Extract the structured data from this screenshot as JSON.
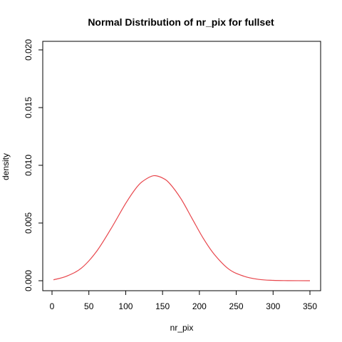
{
  "chart_data": {
    "type": "line",
    "title": "Normal Distribution of nr_pix for fullset",
    "xlabel": "nr_pix",
    "ylabel": "density",
    "xlim": [
      0,
      350
    ],
    "ylim": [
      0,
      0.02
    ],
    "x_ticks": [
      0,
      50,
      100,
      150,
      200,
      250,
      300,
      350
    ],
    "x_tick_labels": [
      "0",
      "50",
      "100",
      "150",
      "200",
      "250",
      "300",
      "350"
    ],
    "y_ticks": [
      0,
      0.005,
      0.01,
      0.015,
      0.02
    ],
    "y_tick_labels": [
      "0.000",
      "0.005",
      "0.010",
      "0.015",
      "0.020"
    ],
    "grid": false,
    "series": [
      {
        "color": "#e8464c",
        "x": [
          2,
          20,
          40,
          60,
          80,
          100,
          115,
          125,
          138,
          150,
          160,
          175,
          190,
          205,
          220,
          240,
          260,
          280,
          300,
          320,
          350
        ],
        "y": [
          8e-05,
          0.0004,
          0.0011,
          0.0025,
          0.0045,
          0.0067,
          0.0081,
          0.0087,
          0.0091,
          0.0089,
          0.0084,
          0.0071,
          0.0054,
          0.0037,
          0.0023,
          0.001,
          0.0004,
          0.00012,
          3e-05,
          1e-05,
          0.0
        ]
      }
    ]
  }
}
